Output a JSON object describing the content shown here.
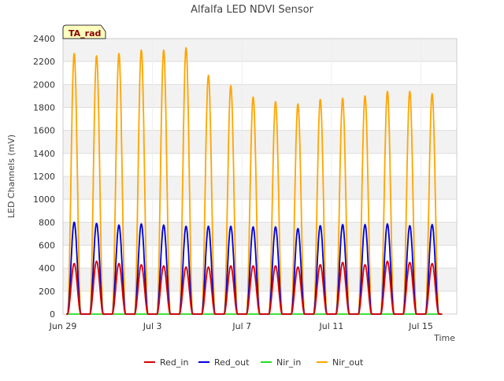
{
  "chart_data": {
    "type": "line",
    "title": "Alfalfa LED NDVI Sensor",
    "xlabel": "Time",
    "ylabel": "LED Channels (mV)",
    "site_label": "TA_rad",
    "x_range_days": [
      0,
      17.6
    ],
    "ylim": [
      0,
      2400
    ],
    "y_ticks": [
      0,
      200,
      400,
      600,
      800,
      1000,
      1200,
      1400,
      1600,
      1800,
      2000,
      2200,
      2400
    ],
    "x_ticks": [
      {
        "day": 0,
        "label": "Jun 29"
      },
      {
        "day": 4,
        "label": "Jul 3"
      },
      {
        "day": 8,
        "label": "Jul 7"
      },
      {
        "day": 12,
        "label": "Jul 11"
      },
      {
        "day": 16,
        "label": "Jul 15"
      }
    ],
    "grid": true,
    "legend_position": "bottom-center",
    "peak_days": [
      0.5,
      1.5,
      2.5,
      3.5,
      4.5,
      5.5,
      6.5,
      7.5,
      8.5,
      9.5,
      10.5,
      11.5,
      12.5,
      13.5,
      14.5,
      15.5,
      16.5
    ],
    "series": [
      {
        "name": "Red_in",
        "color": "#dd0000",
        "daily_peaks": [
          440,
          460,
          440,
          430,
          420,
          410,
          410,
          420,
          420,
          420,
          410,
          430,
          450,
          430,
          460,
          450,
          440
        ]
      },
      {
        "name": "Red_out",
        "color": "#0000dd",
        "daily_peaks": [
          800,
          790,
          775,
          785,
          775,
          765,
          765,
          765,
          760,
          760,
          745,
          770,
          780,
          780,
          785,
          770,
          780
        ]
      },
      {
        "name": "Nir_in",
        "color": "#22dd22",
        "daily_peaks": [
          0,
          0,
          0,
          0,
          0,
          0,
          0,
          0,
          0,
          0,
          0,
          0,
          0,
          0,
          0,
          0,
          0
        ]
      },
      {
        "name": "Nir_out",
        "color": "#ffa500",
        "daily_peaks": [
          2270,
          2250,
          2270,
          2300,
          2300,
          2320,
          2080,
          1990,
          1890,
          1850,
          1830,
          1870,
          1880,
          1900,
          1940,
          1940,
          1920
        ]
      }
    ]
  }
}
